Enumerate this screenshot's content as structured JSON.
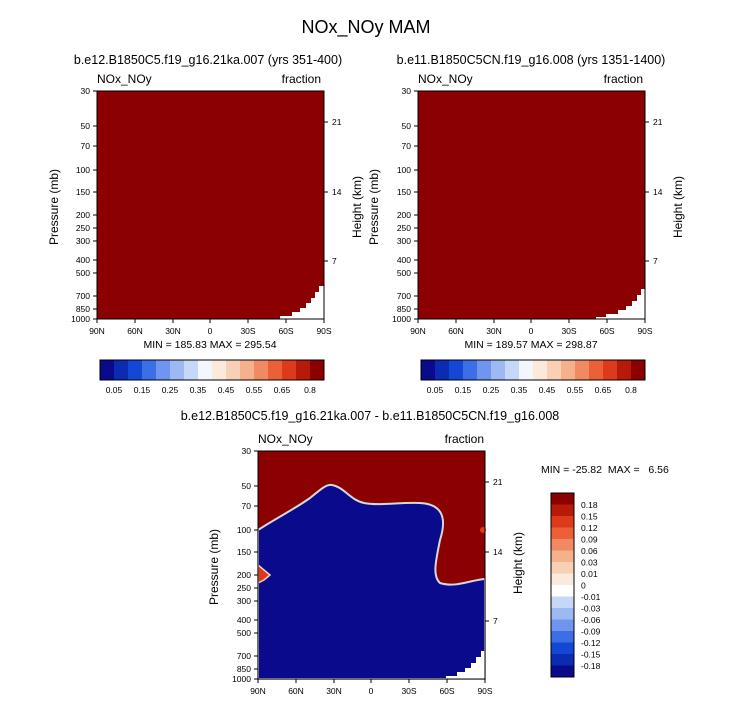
{
  "main_title": "NOx_NOy MAM",
  "colors": {
    "dark_red": "#8b0000",
    "dark_blue": "#0a0a8c",
    "zero_line": "#d8d8d8"
  },
  "chart_data": [
    {
      "id": "panel1",
      "type": "heatmap",
      "title": "b.e12.B1850C5.f19_g16.21ka.007 (yrs 351-400)",
      "variable_label": "NOx_NOy",
      "units_label": "fraction",
      "ylabel": "Pressure (mb)",
      "y2label": "Height (km)",
      "x_ticks": [
        "90N",
        "60N",
        "30N",
        "0",
        "30S",
        "60S",
        "90S"
      ],
      "y_ticks": [
        "30",
        "50",
        "70",
        "100",
        "150",
        "200",
        "250",
        "300",
        "400",
        "500",
        "700",
        "850",
        "1000"
      ],
      "y2_ticks": [
        "21",
        "14",
        "7"
      ],
      "stats": "MIN = 185.83  MAX = 295.54",
      "colorbar_labels": [
        "0.05",
        "0.15",
        "0.25",
        "0.35",
        "0.45",
        "0.55",
        "0.65",
        "0.8"
      ]
    },
    {
      "id": "panel2",
      "type": "heatmap",
      "title": "b.e11.B1850C5CN.f19_g16.008 (yrs 1351-1400)",
      "variable_label": "NOx_NOy",
      "units_label": "fraction",
      "ylabel": "Pressure (mb)",
      "y2label": "Height (km)",
      "x_ticks": [
        "90N",
        "60N",
        "30N",
        "0",
        "30S",
        "60S",
        "90S"
      ],
      "y_ticks": [
        "30",
        "50",
        "70",
        "100",
        "150",
        "200",
        "250",
        "300",
        "400",
        "500",
        "700",
        "850",
        "1000"
      ],
      "y2_ticks": [
        "21",
        "14",
        "7"
      ],
      "stats": "MIN = 189.57  MAX = 298.87",
      "colorbar_labels": [
        "0.05",
        "0.15",
        "0.25",
        "0.35",
        "0.45",
        "0.55",
        "0.65",
        "0.8"
      ]
    },
    {
      "id": "panel3",
      "type": "heatmap",
      "title": "b.e12.B1850C5.f19_g16.21ka.007 - b.e11.B1850C5CN.f19_g16.008",
      "variable_label": "NOx_NOy",
      "units_label": "fraction",
      "ylabel": "Pressure (mb)",
      "y2label": "Height (km)",
      "x_ticks": [
        "90N",
        "60N",
        "30N",
        "0",
        "30S",
        "60S",
        "90S"
      ],
      "y_ticks": [
        "30",
        "50",
        "70",
        "100",
        "150",
        "200",
        "250",
        "300",
        "400",
        "500",
        "700",
        "850",
        "1000"
      ],
      "y2_ticks": [
        "21",
        "14",
        "7"
      ],
      "stats": "MIN = -25.82  MAX =   6.56",
      "colorbar_labels": [
        "0.18",
        "0.15",
        "0.12",
        "0.09",
        "0.06",
        "0.03",
        "0.01",
        "0",
        "-0.01",
        "-0.03",
        "-0.06",
        "-0.09",
        "-0.12",
        "-0.15",
        "-0.18"
      ]
    }
  ]
}
